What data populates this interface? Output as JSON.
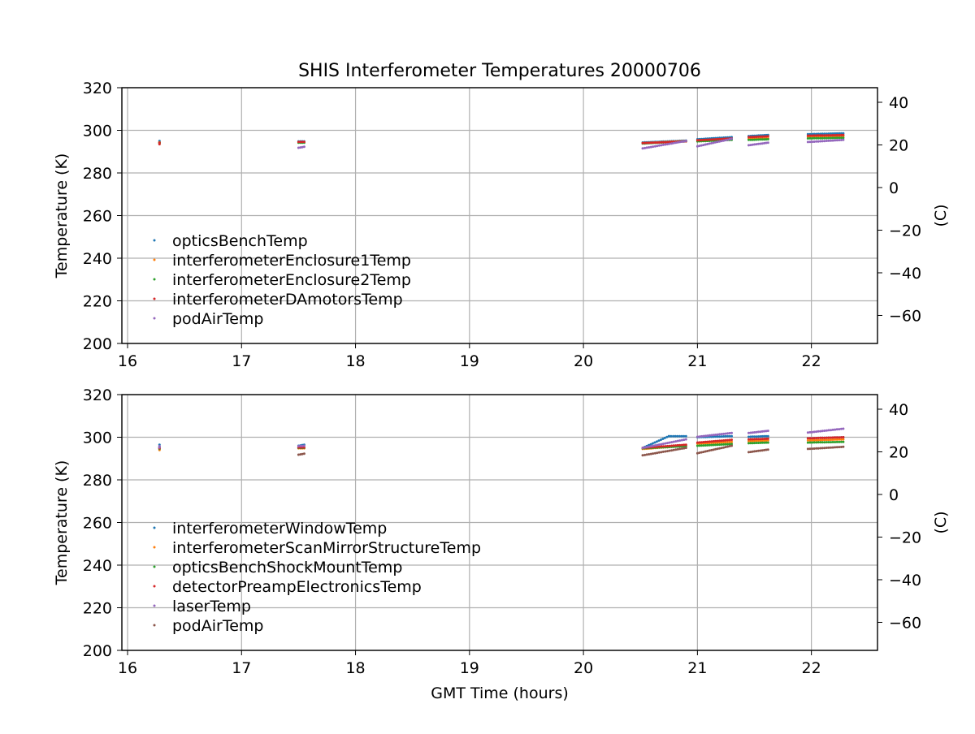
{
  "title": "SHIS Interferometer Temperatures 20000706",
  "xlabel": "GMT Time (hours)",
  "chart_data": [
    {
      "type": "scatter",
      "ylabel": "Temperature (K)",
      "ylabel_right": "(C)",
      "xlim": [
        15.95,
        22.58
      ],
      "ylim": [
        200,
        320
      ],
      "x_ticks": [
        16,
        17,
        18,
        19,
        20,
        21,
        22
      ],
      "y_ticks": [
        200,
        220,
        240,
        260,
        280,
        300,
        320
      ],
      "y2_ticks": [
        40,
        20,
        0,
        -20,
        -40,
        -60
      ],
      "grid": true,
      "legend_position": "lower-left",
      "series": [
        {
          "name": "opticsBenchTemp",
          "color": "#1f77b4",
          "segments": [
            {
              "x": [
                16.28,
                16.28
              ],
              "y": [
                294.5,
                295.0
              ]
            },
            {
              "x": [
                17.5,
                17.55
              ],
              "y": [
                294.8,
                294.8
              ]
            },
            {
              "x": [
                20.52,
                20.9
              ],
              "y": [
                294.3,
                295.2
              ]
            },
            {
              "x": [
                21.0,
                21.3
              ],
              "y": [
                295.8,
                296.8
              ]
            },
            {
              "x": [
                21.45,
                21.62
              ],
              "y": [
                297.3,
                297.8
              ]
            },
            {
              "x": [
                21.97,
                22.28
              ],
              "y": [
                298.2,
                298.6
              ]
            }
          ]
        },
        {
          "name": "interferometerEnclosure1Temp",
          "color": "#ff7f0e",
          "segments": [
            {
              "x": [
                16.28,
                16.28
              ],
              "y": [
                294.0,
                294.4
              ]
            },
            {
              "x": [
                17.5,
                17.55
              ],
              "y": [
                294.4,
                294.4
              ]
            },
            {
              "x": [
                20.52,
                20.9
              ],
              "y": [
                294.0,
                295.0
              ]
            },
            {
              "x": [
                21.0,
                21.3
              ],
              "y": [
                295.3,
                296.0
              ]
            },
            {
              "x": [
                21.45,
                21.62
              ],
              "y": [
                296.0,
                296.2
              ]
            },
            {
              "x": [
                21.97,
                22.28
              ],
              "y": [
                297.0,
                297.3
              ]
            }
          ]
        },
        {
          "name": "interferometerEnclosure2Temp",
          "color": "#2ca02c",
          "segments": [
            {
              "x": [
                16.28,
                16.28
              ],
              "y": [
                293.8,
                294.2
              ]
            },
            {
              "x": [
                17.5,
                17.55
              ],
              "y": [
                294.2,
                294.2
              ]
            },
            {
              "x": [
                20.52,
                20.9
              ],
              "y": [
                293.8,
                294.8
              ]
            },
            {
              "x": [
                21.0,
                21.3
              ],
              "y": [
                294.8,
                295.5
              ]
            },
            {
              "x": [
                21.45,
                21.62
              ],
              "y": [
                295.5,
                295.8
              ]
            },
            {
              "x": [
                21.97,
                22.28
              ],
              "y": [
                296.2,
                296.5
              ]
            }
          ]
        },
        {
          "name": "interferometerDAmotorsTemp",
          "color": "#d62728",
          "segments": [
            {
              "x": [
                16.28,
                16.28
              ],
              "y": [
                293.5,
                294.2
              ]
            },
            {
              "x": [
                17.5,
                17.55
              ],
              "y": [
                294.6,
                294.6
              ]
            },
            {
              "x": [
                20.52,
                20.9
              ],
              "y": [
                294.0,
                294.8
              ]
            },
            {
              "x": [
                21.0,
                21.3
              ],
              "y": [
                295.3,
                296.2
              ]
            },
            {
              "x": [
                21.45,
                21.62
              ],
              "y": [
                296.8,
                297.2
              ]
            },
            {
              "x": [
                21.97,
                22.28
              ],
              "y": [
                297.5,
                297.8
              ]
            }
          ]
        },
        {
          "name": "podAirTemp",
          "color": "#9467bd",
          "segments": [
            {
              "x": [
                17.5,
                17.55
              ],
              "y": [
                291.8,
                292.3
              ]
            },
            {
              "x": [
                20.52,
                20.9
              ],
              "y": [
                291.5,
                295.0
              ]
            },
            {
              "x": [
                21.0,
                21.3
              ],
              "y": [
                292.5,
                296.0
              ]
            },
            {
              "x": [
                21.45,
                21.62
              ],
              "y": [
                293.0,
                294.2
              ]
            },
            {
              "x": [
                21.97,
                22.28
              ],
              "y": [
                294.5,
                295.5
              ]
            }
          ]
        }
      ]
    },
    {
      "type": "scatter",
      "ylabel": "Temperature (K)",
      "ylabel_right": "(C)",
      "xlim": [
        15.95,
        22.58
      ],
      "ylim": [
        200,
        320
      ],
      "x_ticks": [
        16,
        17,
        18,
        19,
        20,
        21,
        22
      ],
      "y_ticks": [
        200,
        220,
        240,
        260,
        280,
        300,
        320
      ],
      "y2_ticks": [
        40,
        20,
        0,
        -20,
        -40,
        -60
      ],
      "grid": true,
      "legend_position": "lower-left",
      "series": [
        {
          "name": "interferometerWindowTemp",
          "color": "#1f77b4",
          "segments": [
            {
              "x": [
                16.28,
                16.28
              ],
              "y": [
                295.5,
                296.5
              ]
            },
            {
              "x": [
                17.5,
                17.55
              ],
              "y": [
                296.0,
                296.5
              ]
            },
            {
              "x": [
                20.52,
                20.75
              ],
              "y": [
                295.0,
                300.5
              ]
            },
            {
              "x": [
                20.75,
                20.9
              ],
              "y": [
                300.5,
                300.5
              ]
            },
            {
              "x": [
                21.0,
                21.3
              ],
              "y": [
                300.0,
                300.5
              ]
            },
            {
              "x": [
                21.45,
                21.62
              ],
              "y": [
                300.2,
                300.5
              ]
            },
            {
              "x": [
                21.97,
                22.28
              ],
              "y": [
                299.5,
                300.0
              ]
            }
          ]
        },
        {
          "name": "interferometerScanMirrorStructureTemp",
          "color": "#ff7f0e",
          "segments": [
            {
              "x": [
                16.28,
                16.28
              ],
              "y": [
                294.0,
                294.5
              ]
            },
            {
              "x": [
                17.5,
                17.55
              ],
              "y": [
                294.8,
                294.8
              ]
            },
            {
              "x": [
                20.52,
                20.9
              ],
              "y": [
                294.5,
                296.0
              ]
            },
            {
              "x": [
                21.0,
                21.3
              ],
              "y": [
                297.0,
                297.8
              ]
            },
            {
              "x": [
                21.45,
                21.62
              ],
              "y": [
                298.2,
                298.5
              ]
            },
            {
              "x": [
                21.97,
                22.28
              ],
              "y": [
                298.5,
                299.0
              ]
            }
          ]
        },
        {
          "name": "opticsBenchShockMountTemp",
          "color": "#2ca02c",
          "segments": [
            {
              "x": [
                16.28,
                16.28
              ],
              "y": [
                294.5,
                295.0
              ]
            },
            {
              "x": [
                17.5,
                17.55
              ],
              "y": [
                295.0,
                295.0
              ]
            },
            {
              "x": [
                20.52,
                20.9
              ],
              "y": [
                294.8,
                295.8
              ]
            },
            {
              "x": [
                21.0,
                21.3
              ],
              "y": [
                296.0,
                296.8
              ]
            },
            {
              "x": [
                21.45,
                21.62
              ],
              "y": [
                297.2,
                297.5
              ]
            },
            {
              "x": [
                21.97,
                22.28
              ],
              "y": [
                297.5,
                297.8
              ]
            }
          ]
        },
        {
          "name": "detectorPreampElectronicsTemp",
          "color": "#d62728",
          "segments": [
            {
              "x": [
                16.28,
                16.28
              ],
              "y": [
                294.8,
                295.2
              ]
            },
            {
              "x": [
                17.5,
                17.55
              ],
              "y": [
                295.2,
                295.2
              ]
            },
            {
              "x": [
                20.52,
                20.9
              ],
              "y": [
                295.0,
                296.5
              ]
            },
            {
              "x": [
                21.0,
                21.3
              ],
              "y": [
                297.5,
                298.8
              ]
            },
            {
              "x": [
                21.45,
                21.62
              ],
              "y": [
                299.0,
                299.3
              ]
            },
            {
              "x": [
                21.97,
                22.28
              ],
              "y": [
                299.5,
                300.0
              ]
            }
          ]
        },
        {
          "name": "laserTemp",
          "color": "#9467bd",
          "segments": [
            {
              "x": [
                16.28,
                16.28
              ],
              "y": [
                295.2,
                295.8
              ]
            },
            {
              "x": [
                17.5,
                17.55
              ],
              "y": [
                295.8,
                296.0
              ]
            },
            {
              "x": [
                20.52,
                20.9
              ],
              "y": [
                295.0,
                299.0
              ]
            },
            {
              "x": [
                21.0,
                21.3
              ],
              "y": [
                300.2,
                302.0
              ]
            },
            {
              "x": [
                21.45,
                21.62
              ],
              "y": [
                302.0,
                303.0
              ]
            },
            {
              "x": [
                21.97,
                22.28
              ],
              "y": [
                302.2,
                304.0
              ]
            }
          ]
        },
        {
          "name": "podAirTemp",
          "color": "#8c564b",
          "segments": [
            {
              "x": [
                17.5,
                17.55
              ],
              "y": [
                291.8,
                292.3
              ]
            },
            {
              "x": [
                20.52,
                20.9
              ],
              "y": [
                291.5,
                295.0
              ]
            },
            {
              "x": [
                21.0,
                21.3
              ],
              "y": [
                292.5,
                296.0
              ]
            },
            {
              "x": [
                21.45,
                21.62
              ],
              "y": [
                293.0,
                294.2
              ]
            },
            {
              "x": [
                21.97,
                22.28
              ],
              "y": [
                294.5,
                295.5
              ]
            }
          ]
        }
      ]
    }
  ]
}
